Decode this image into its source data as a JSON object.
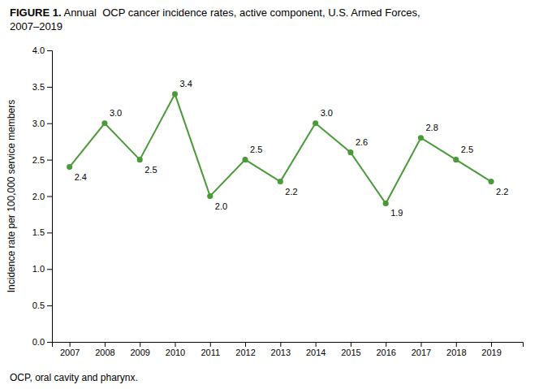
{
  "chart_data": {
    "type": "line",
    "title": "FIGURE 1. Annual  OCP cancer incidence rates, active component, U.S. Armed Forces,\n2007–2019",
    "caption": "OCP, oral cavity and pharynx.",
    "y_label": "Incidence rate per 100,000 service members",
    "x": [
      2007,
      2008,
      2009,
      2010,
      2011,
      2012,
      2013,
      2014,
      2015,
      2016,
      2017,
      2018,
      2019
    ],
    "values": [
      2.4,
      3.0,
      2.5,
      3.4,
      2.0,
      2.5,
      2.2,
      3.0,
      2.6,
      1.9,
      2.8,
      2.5,
      2.2
    ],
    "value_labels": [
      "2.4",
      "3.0",
      "2.5",
      "3.4",
      "2.0",
      "2.5",
      "2.2",
      "3.0",
      "2.6",
      "1.9",
      "2.8",
      "2.5",
      "2.2"
    ],
    "data_labels": true,
    "color": "#4a9a3a",
    "marker": "circle",
    "xlim": [
      2006.5,
      2019.9
    ],
    "xticks": [
      2007,
      2008,
      2009,
      2010,
      2011,
      2012,
      2013,
      2014,
      2015,
      2016,
      2017,
      2018,
      2019
    ],
    "ylim": [
      0,
      4.0
    ],
    "yticks": [
      {
        "value": 0,
        "label": "0.0"
      },
      0.5,
      {
        "value": 1,
        "label": "1.0"
      },
      1.5,
      {
        "value": 2,
        "label": "2.0"
      },
      2.5,
      {
        "value": 3,
        "label": "3.0"
      },
      3.5,
      {
        "value": 4,
        "label": "4.0"
      }
    ],
    "grid": false
  }
}
